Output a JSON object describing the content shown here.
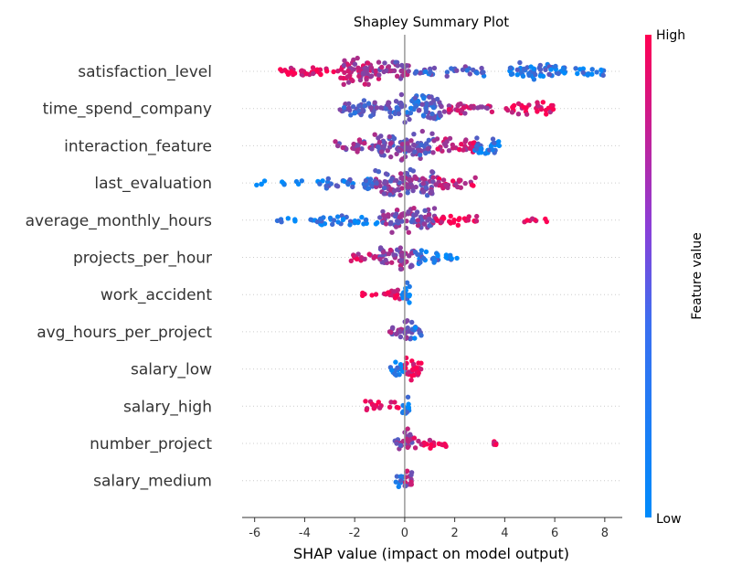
{
  "chart_data": {
    "type": "scatter",
    "title": "Shapley Summary Plot",
    "xlabel": "SHAP value (impact on model output)",
    "xlim": [
      -6.5,
      8.7
    ],
    "xticks": [
      -6,
      -4,
      -2,
      0,
      2,
      4,
      6,
      8
    ],
    "colorbar": {
      "label": "Feature value",
      "high_label": "High",
      "low_label": "Low",
      "low_color": "#008bfb",
      "high_color": "#ff0052"
    },
    "features": [
      {
        "name": "satisfaction_level",
        "bands": [
          [
            -5.2,
            -2.6,
            0.92,
            0.28
          ],
          [
            -2.6,
            -1.0,
            0.7,
            1.0
          ],
          [
            -1.0,
            0.2,
            0.55,
            0.6
          ],
          [
            0.2,
            3.2,
            0.3,
            0.25
          ],
          [
            4.2,
            6.0,
            0.2,
            0.55
          ],
          [
            6.0,
            8.0,
            0.1,
            0.3
          ]
        ]
      },
      {
        "name": "time_spend_company",
        "bands": [
          [
            -2.6,
            -0.5,
            0.35,
            0.6
          ],
          [
            -0.5,
            1.5,
            0.3,
            1.0
          ],
          [
            1.5,
            3.5,
            0.75,
            0.35
          ],
          [
            4.0,
            6.0,
            0.9,
            0.4
          ]
        ]
      },
      {
        "name": "interaction_feature",
        "bands": [
          [
            -2.8,
            -1.2,
            0.55,
            0.4
          ],
          [
            -1.2,
            1.2,
            0.45,
            1.0
          ],
          [
            1.2,
            2.8,
            0.8,
            0.5
          ],
          [
            2.8,
            3.8,
            0.1,
            0.65
          ]
        ]
      },
      {
        "name": "last_evaluation",
        "bands": [
          [
            -6.0,
            -3.0,
            0.05,
            0.1
          ],
          [
            -3.2,
            -1.2,
            0.2,
            0.4
          ],
          [
            -1.2,
            1.2,
            0.5,
            1.0
          ],
          [
            1.2,
            3.0,
            0.8,
            0.35
          ]
        ]
      },
      {
        "name": "average_monthly_hours",
        "bands": [
          [
            -5.2,
            -3.5,
            0.05,
            0.1
          ],
          [
            -3.5,
            -1.0,
            0.1,
            0.3
          ],
          [
            -1.0,
            1.2,
            0.5,
            0.85
          ],
          [
            1.2,
            3.0,
            0.9,
            0.3
          ],
          [
            4.7,
            5.7,
            0.9,
            0.1
          ]
        ]
      },
      {
        "name": "projects_per_hour",
        "bands": [
          [
            -2.2,
            -1.0,
            0.8,
            0.3
          ],
          [
            -1.0,
            0.4,
            0.55,
            0.9
          ],
          [
            0.4,
            1.5,
            0.2,
            0.45
          ],
          [
            1.5,
            2.2,
            0.1,
            0.15
          ]
        ]
      },
      {
        "name": "work_accident",
        "bands": [
          [
            -1.7,
            -0.2,
            0.95,
            0.28
          ],
          [
            -0.1,
            0.2,
            0.05,
            0.95
          ]
        ]
      },
      {
        "name": "avg_hours_per_project",
        "bands": [
          [
            -0.6,
            0.0,
            0.55,
            0.45
          ],
          [
            0.0,
            0.3,
            0.45,
            1.0
          ],
          [
            0.3,
            0.7,
            0.2,
            0.4
          ]
        ]
      },
      {
        "name": "salary_low",
        "bands": [
          [
            -0.6,
            0.0,
            0.05,
            0.75
          ],
          [
            0.0,
            0.7,
            0.95,
            0.8
          ]
        ]
      },
      {
        "name": "salary_high",
        "bands": [
          [
            -1.6,
            -0.2,
            0.95,
            0.25
          ],
          [
            -0.1,
            0.2,
            0.05,
            0.95
          ]
        ]
      },
      {
        "name": "number_project",
        "bands": [
          [
            -0.4,
            0.0,
            0.5,
            0.35
          ],
          [
            0.0,
            0.3,
            0.55,
            0.95
          ],
          [
            0.3,
            1.7,
            0.9,
            0.3
          ],
          [
            3.5,
            3.7,
            0.95,
            0.1
          ]
        ]
      },
      {
        "name": "salary_medium",
        "bands": [
          [
            -0.4,
            0.0,
            0.2,
            0.45
          ],
          [
            0.0,
            0.3,
            0.6,
            0.95
          ]
        ]
      }
    ]
  }
}
